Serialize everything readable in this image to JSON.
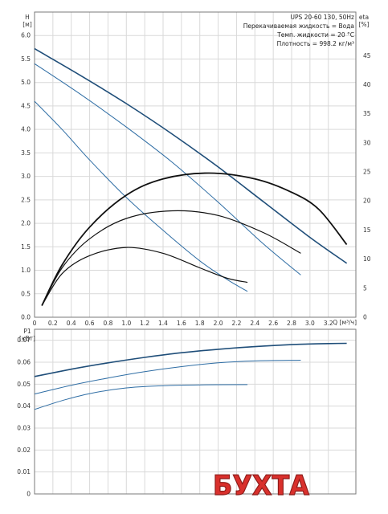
{
  "chart_data": [
    {
      "type": "line",
      "title": "UPS 20-60 130, 50Hz",
      "info_lines": [
        "Перекачиваемая жидкость = Вода",
        "Темп. жидкости = 20 °C",
        "Плотность = 998.2 кг/м³"
      ],
      "xlabel": "Q [м³/ч]",
      "ylabel_name": "H",
      "ylabel_unit": "[м]",
      "y2label_name": "eta",
      "y2label_unit": "[%]",
      "xlim": [
        0,
        3.5
      ],
      "ylim": [
        0,
        6.5
      ],
      "y2lim": [
        0,
        52.5
      ],
      "xticks": [
        "0",
        "0.2",
        "0.4",
        "0.6",
        "0.8",
        "1.0",
        "1.2",
        "1.4",
        "1.6",
        "1.8",
        "2.0",
        "2.2",
        "2.4",
        "2.6",
        "2.8",
        "3.0",
        "3.2"
      ],
      "yticks": [
        "0.0",
        "0.5",
        "1.0",
        "1.5",
        "2.0",
        "2.5",
        "3.0",
        "3.5",
        "4.0",
        "4.5",
        "5.0",
        "5.5",
        "6.0"
      ],
      "y2ticks": [
        "0",
        "5",
        "10",
        "15",
        "20",
        "25",
        "30",
        "35",
        "40",
        "45"
      ],
      "grid": true,
      "series": [
        {
          "axis": "left",
          "color": "#1f4e79",
          "width": 1.6,
          "x": [
            0,
            0.5,
            1.0,
            1.5,
            2.0,
            2.5,
            3.0,
            3.4
          ],
          "values": [
            5.72,
            5.15,
            4.55,
            3.9,
            3.2,
            2.45,
            1.7,
            1.15
          ]
        },
        {
          "axis": "left",
          "color": "#2e6da4",
          "width": 1.0,
          "x": [
            0,
            0.5,
            1.0,
            1.5,
            2.0,
            2.5,
            2.9
          ],
          "values": [
            5.4,
            4.75,
            4.05,
            3.3,
            2.45,
            1.55,
            0.9
          ]
        },
        {
          "axis": "left",
          "color": "#2e6da4",
          "width": 1.0,
          "x": [
            0,
            0.3,
            0.6,
            1.0,
            1.4,
            1.8,
            2.1,
            2.32
          ],
          "values": [
            4.6,
            4.0,
            3.35,
            2.55,
            1.85,
            1.2,
            0.8,
            0.55
          ]
        },
        {
          "axis": "right",
          "color": "#111111",
          "width": 1.8,
          "x": [
            0.08,
            0.3,
            0.6,
            1.0,
            1.4,
            1.9,
            2.4,
            2.8,
            3.1,
            3.4
          ],
          "values": [
            2,
            9,
            15.5,
            21,
            23.8,
            24.8,
            23.8,
            21.5,
            18.5,
            12.5
          ]
        },
        {
          "axis": "right",
          "color": "#111111",
          "width": 1.2,
          "x": [
            0.08,
            0.3,
            0.6,
            1.0,
            1.5,
            2.0,
            2.5,
            2.9
          ],
          "values": [
            2,
            8.5,
            13.5,
            17,
            18.3,
            17.5,
            14.5,
            11
          ]
        },
        {
          "axis": "right",
          "color": "#111111",
          "width": 1.2,
          "x": [
            0.08,
            0.3,
            0.6,
            1.0,
            1.4,
            1.8,
            2.1,
            2.32
          ],
          "values": [
            2,
            7.5,
            10.6,
            12,
            11,
            8.5,
            6.7,
            6
          ]
        }
      ]
    },
    {
      "type": "line",
      "ylabel_name": "P1",
      "ylabel_unit": "[кВт]",
      "xlim": [
        0,
        3.5
      ],
      "ylim": [
        0,
        0.075
      ],
      "yticks": [
        "0",
        "0.01",
        "0.02",
        "0.03",
        "0.04",
        "0.05",
        "0.06",
        "0.07"
      ],
      "grid": true,
      "series": [
        {
          "color": "#1f4e79",
          "width": 1.6,
          "x": [
            0,
            0.4,
            0.8,
            1.2,
            1.6,
            2.0,
            2.4,
            2.8,
            3.2,
            3.4
          ],
          "values": [
            0.0535,
            0.0568,
            0.0597,
            0.0622,
            0.0643,
            0.0659,
            0.0671,
            0.068,
            0.0685,
            0.0686
          ]
        },
        {
          "color": "#2e6da4",
          "width": 1.0,
          "x": [
            0,
            0.4,
            0.8,
            1.2,
            1.6,
            2.0,
            2.4,
            2.9
          ],
          "values": [
            0.0455,
            0.0495,
            0.0528,
            0.0557,
            0.058,
            0.0597,
            0.0606,
            0.0609
          ]
        },
        {
          "color": "#2e6da4",
          "width": 1.0,
          "x": [
            0,
            0.3,
            0.6,
            1.0,
            1.4,
            1.8,
            2.32
          ],
          "values": [
            0.0385,
            0.0425,
            0.0457,
            0.0483,
            0.0493,
            0.0497,
            0.0498
          ]
        }
      ]
    }
  ],
  "watermark": {
    "text": "БУХТА"
  }
}
